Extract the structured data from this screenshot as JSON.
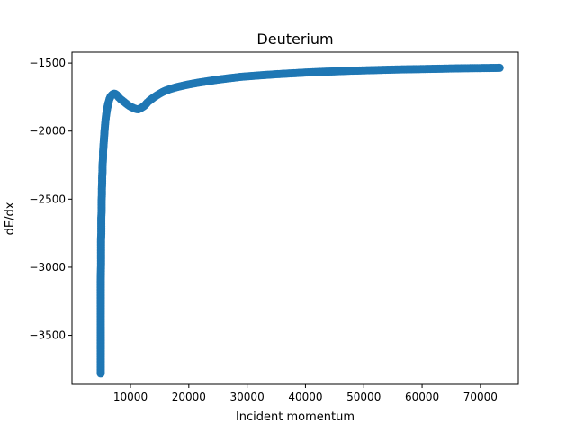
{
  "chart_data": {
    "type": "scatter",
    "title": "Deuterium",
    "xlabel": "Incident momentum",
    "ylabel": "dE/dx",
    "xlim": [
      -30,
      76500
    ],
    "ylim": [
      -3860,
      -1420
    ],
    "xticks": [
      10000,
      20000,
      30000,
      40000,
      50000,
      60000,
      70000
    ],
    "xtick_labels": [
      "10000",
      "20000",
      "30000",
      "40000",
      "50000",
      "60000",
      "70000"
    ],
    "yticks": [
      -3500,
      -3000,
      -2500,
      -2000,
      -1500
    ],
    "ytick_labels": [
      "−3500",
      "−3000",
      "−2500",
      "−2000",
      "−1500"
    ],
    "grid": false,
    "marker_color": "#1f77b4",
    "series": [
      {
        "x": [
          4900,
          4900,
          4900,
          4900,
          4900,
          4950,
          4950,
          4950,
          4950,
          5000,
          5000,
          5000,
          5050,
          5050,
          5050,
          5100,
          5100,
          5150,
          5150,
          5200,
          5200,
          5250,
          5300,
          5300,
          5350,
          5400,
          5450,
          5500,
          5550,
          5600,
          5650,
          5700,
          5800,
          5900,
          6000,
          6100,
          6200,
          6300,
          6400,
          6500,
          6600,
          6800,
          7000,
          7200,
          7400,
          7600,
          7800,
          8000,
          8300,
          8600,
          8900,
          9200,
          9500,
          9800,
          10100,
          10400,
          10700,
          11000,
          11300,
          11600,
          11900,
          12200,
          12500,
          12700,
          12900,
          13200,
          13600,
          14000,
          14500,
          15000,
          15500,
          16000,
          17000,
          18000,
          19000,
          20000,
          21500,
          23000,
          25000,
          27000,
          29000,
          31000,
          33000,
          35000,
          37500,
          40000,
          42500,
          45000,
          47500,
          50000,
          52500,
          55000,
          57500,
          60000,
          62500,
          65000,
          67500,
          70000,
          72000,
          73300
        ],
        "y": [
          -3780,
          -3280,
          -3250,
          -3150,
          -3100,
          -2980,
          -2920,
          -2900,
          -2800,
          -2750,
          -2700,
          -2640,
          -2590,
          -2550,
          -2510,
          -2470,
          -2420,
          -2380,
          -2340,
          -2300,
          -2260,
          -2230,
          -2190,
          -2150,
          -2120,
          -2090,
          -2060,
          -2030,
          -2000,
          -1975,
          -1950,
          -1925,
          -1890,
          -1860,
          -1835,
          -1815,
          -1795,
          -1780,
          -1765,
          -1755,
          -1745,
          -1735,
          -1728,
          -1725,
          -1727,
          -1733,
          -1742,
          -1753,
          -1765,
          -1775,
          -1785,
          -1796,
          -1806,
          -1815,
          -1822,
          -1828,
          -1834,
          -1838,
          -1840,
          -1835,
          -1828,
          -1820,
          -1810,
          -1800,
          -1790,
          -1778,
          -1765,
          -1752,
          -1738,
          -1725,
          -1713,
          -1703,
          -1688,
          -1676,
          -1666,
          -1657,
          -1645,
          -1635,
          -1622,
          -1611,
          -1601,
          -1594,
          -1588,
          -1582,
          -1576,
          -1570,
          -1565,
          -1561,
          -1557,
          -1554,
          -1551,
          -1548,
          -1546,
          -1544,
          -1542,
          -1540,
          -1538,
          -1537,
          -1536,
          -1535
        ]
      }
    ]
  }
}
